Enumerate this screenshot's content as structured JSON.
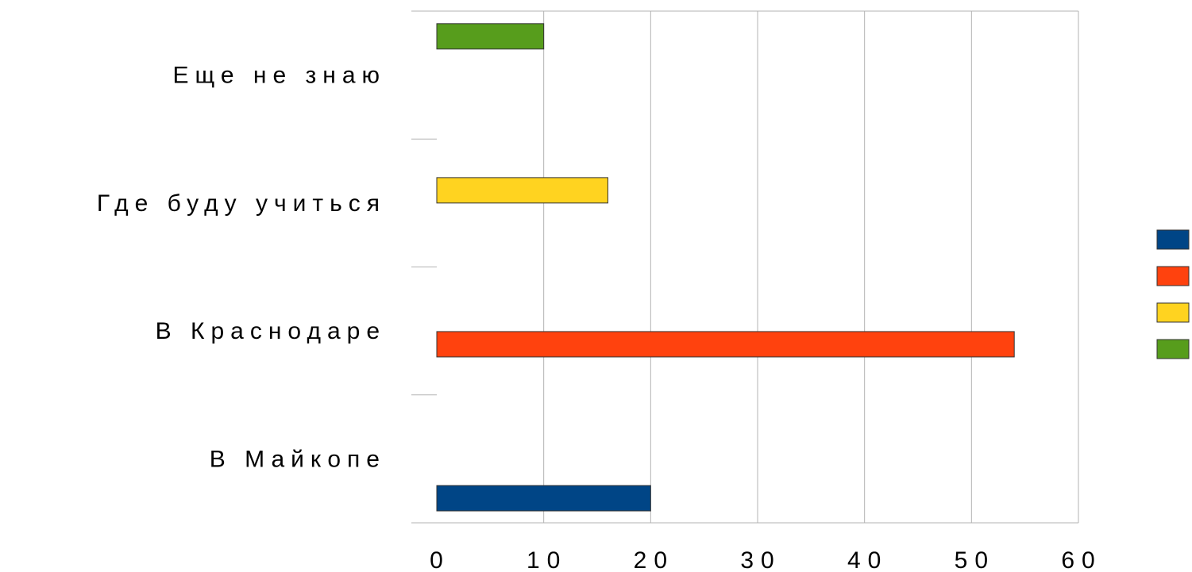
{
  "chart_data": {
    "type": "bar",
    "orientation": "horizontal",
    "categories": [
      "В Майкопе",
      "В Краснодаре",
      "Где буду учиться",
      "Еще не знаю"
    ],
    "values": [
      20,
      54,
      16,
      10
    ],
    "colors": [
      "#004586",
      "#ff420e",
      "#ffd320",
      "#579d1c"
    ],
    "xlim": [
      0,
      60
    ],
    "xticks": [
      0,
      10,
      20,
      30,
      40,
      50,
      60
    ],
    "grid": true,
    "legend": "right",
    "legend_labels": [
      "",
      "",
      "",
      ""
    ]
  }
}
